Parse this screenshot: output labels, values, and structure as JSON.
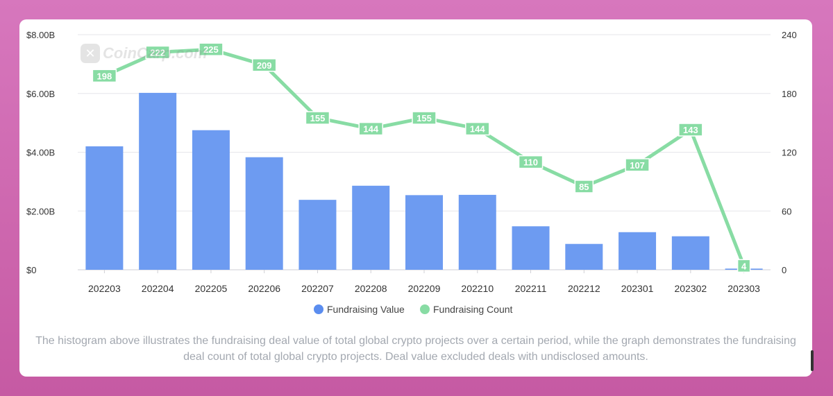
{
  "watermark": {
    "text": "CoinCarp.com",
    "icon": "coincarp-logo-icon"
  },
  "chart_data": {
    "type": "bar",
    "categories": [
      "202203",
      "202204",
      "202205",
      "202206",
      "202207",
      "202208",
      "202209",
      "202210",
      "202211",
      "202212",
      "202301",
      "202302",
      "202303"
    ],
    "series": [
      {
        "name": "Fundraising Value",
        "type": "bar",
        "axis": "left",
        "color": "#6d9bf1",
        "values": [
          4.2,
          6.02,
          4.75,
          3.83,
          2.38,
          2.86,
          2.54,
          2.55,
          1.48,
          0.88,
          1.28,
          1.14,
          0.04
        ]
      },
      {
        "name": "Fundraising Count",
        "type": "line",
        "axis": "right",
        "color": "#88dca4",
        "values": [
          198,
          222,
          225,
          209,
          155,
          144,
          155,
          144,
          110,
          85,
          107,
          143,
          4
        ]
      }
    ],
    "y_left": {
      "ticks": [
        "$0",
        "$2.00B",
        "$4.00B",
        "$6.00B",
        "$8.00B"
      ],
      "ylim": [
        0,
        8
      ]
    },
    "y_right": {
      "ticks": [
        "0",
        "60",
        "120",
        "180",
        "240"
      ],
      "ylim": [
        0,
        240
      ]
    },
    "grid": true,
    "legend_position": "bottom"
  },
  "caption": "The histogram above illustrates the fundraising deal value of total global crypto projects over a certain period, while the graph demonstrates the fundraising deal count of total global crypto projects. Deal value excluded deals with undisclosed amounts."
}
